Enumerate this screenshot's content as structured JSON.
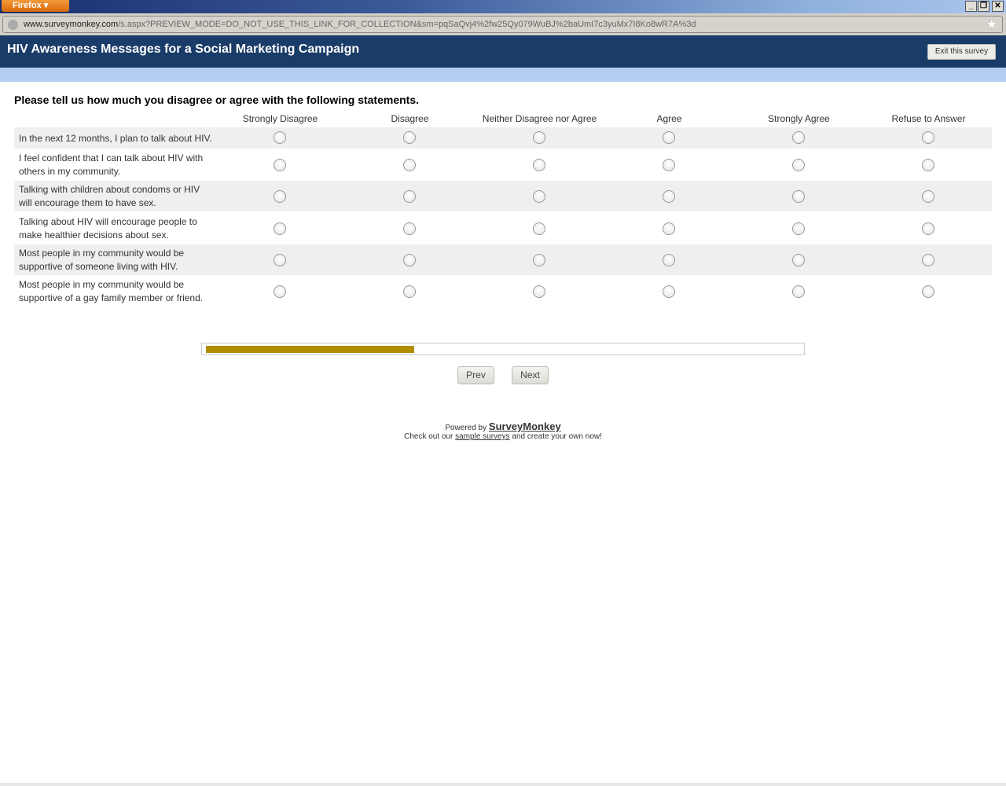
{
  "browser": {
    "app_button": "Firefox",
    "url_domain": "www.surveymonkey.com",
    "url_path": "/s.aspx?PREVIEW_MODE=DO_NOT_USE_THIS_LINK_FOR_COLLECTION&sm=pqSaQvj4%2fw25Qy079WuBJ%2baUmI7c3yuMx7I8Ko8wR7A%3d"
  },
  "header": {
    "title": "HIV Awareness Messages for a Social Marketing Campaign",
    "exit_label": "Exit this survey"
  },
  "question": "Please tell us how much you disagree or agree with the following statements.",
  "columns": [
    "Strongly Disagree",
    "Disagree",
    "Neither Disagree nor Agree",
    "Agree",
    "Strongly Agree",
    "Refuse to Answer"
  ],
  "rows": [
    "In the next 12 months, I plan to talk about HIV.",
    "I feel confident that I can talk about HIV with others in my community.",
    "Talking with children about condoms or HIV will encourage them to have sex.",
    "Talking about HIV will encourage people to make healthier decisions about sex.",
    "Most people in my community would be supportive of someone living with HIV.",
    "Most people in my community would be supportive of a gay family member or friend."
  ],
  "progress_percent": 35,
  "progress_color": "#b08e00",
  "nav": {
    "prev": "Prev",
    "next": "Next"
  },
  "footer": {
    "powered_by": "Powered by",
    "brand": "SurveyMonkey",
    "check_prefix": "Check out our",
    "sample_link": "sample surveys",
    "check_suffix": "and create your own now!"
  }
}
